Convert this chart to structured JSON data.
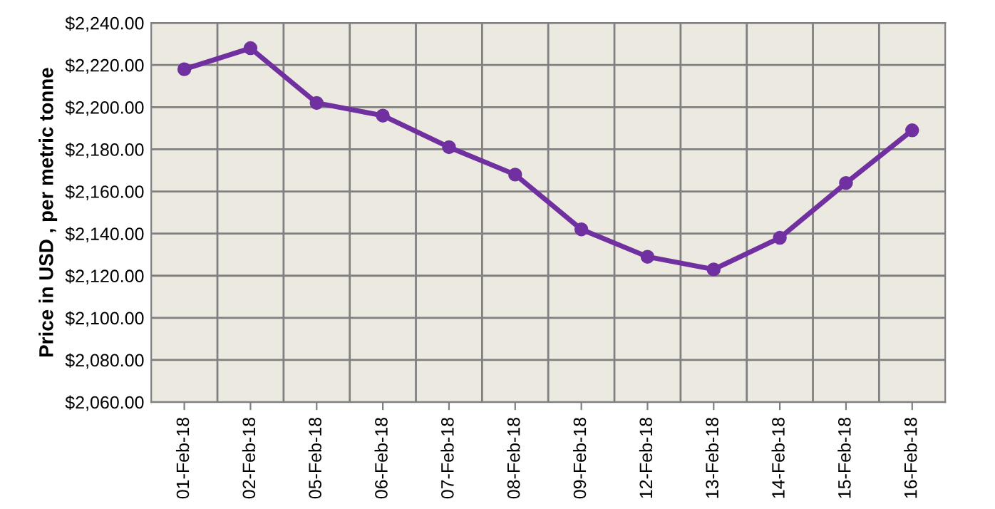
{
  "chart_data": {
    "type": "line",
    "ylabel": "Price in USD , per metric tonne",
    "categories": [
      "01-Feb-18",
      "02-Feb-18",
      "05-Feb-18",
      "06-Feb-18",
      "07-Feb-18",
      "08-Feb-18",
      "09-Feb-18",
      "12-Feb-18",
      "13-Feb-18",
      "14-Feb-18",
      "15-Feb-18",
      "16-Feb-18"
    ],
    "series": [
      {
        "color": "#7030a0",
        "values": [
          2218,
          2228,
          2202,
          2196,
          2181,
          2168,
          2142,
          2129,
          2123,
          2138,
          2164,
          2189
        ]
      }
    ],
    "ylim": [
      2060,
      2240
    ],
    "yticks": [
      {
        "value": 2060,
        "label": "$2,060.00"
      },
      {
        "value": 2080,
        "label": "$2,080.00"
      },
      {
        "value": 2100,
        "label": "$2,100.00"
      },
      {
        "value": 2120,
        "label": "$2,120.00"
      },
      {
        "value": 2140,
        "label": "$2,140.00"
      },
      {
        "value": 2160,
        "label": "$2,160.00"
      },
      {
        "value": 2180,
        "label": "$2,180.00"
      },
      {
        "value": 2200,
        "label": "$2,200.00"
      },
      {
        "value": 2220,
        "label": "$2,220.00"
      },
      {
        "value": 2240,
        "label": "$2,240.00"
      }
    ],
    "grid": true,
    "marker": "circle",
    "line_style": "solid",
    "legend": false
  }
}
